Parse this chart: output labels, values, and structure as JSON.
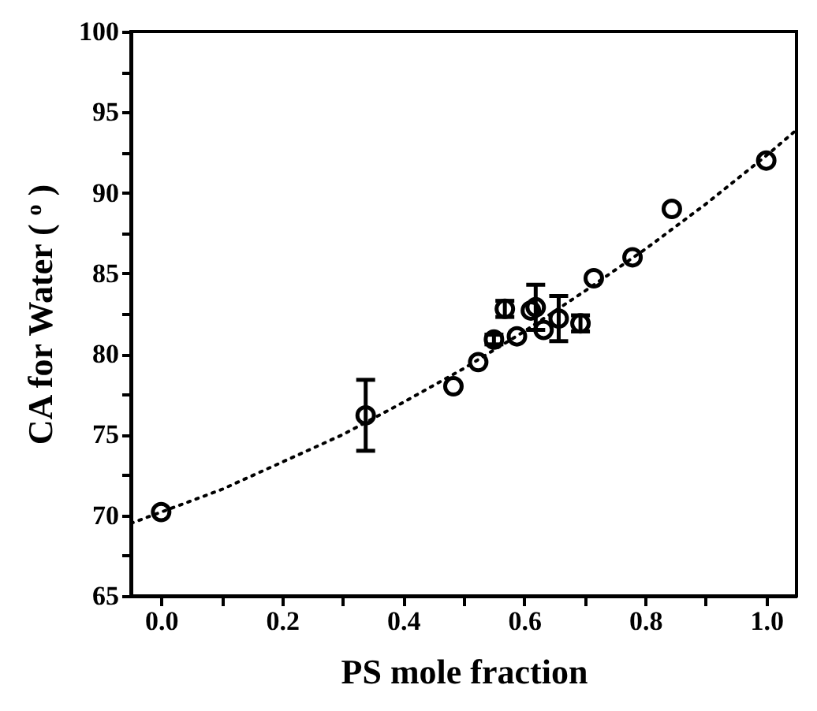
{
  "chart_data": {
    "type": "scatter",
    "xlabel": "PS mole fraction",
    "ylabel": "CA for Water ( $^{o}$ )",
    "xlim": [
      -0.05,
      1.05
    ],
    "ylim": [
      65,
      100
    ],
    "xticks": [
      {
        "value": 0,
        "label": "0.0"
      },
      {
        "value": 0.1,
        "label": null
      },
      {
        "value": 0.2,
        "label": "0.2"
      },
      {
        "value": 0.3,
        "label": null
      },
      {
        "value": 0.4,
        "label": "0.4"
      },
      {
        "value": 0.5,
        "label": null
      },
      {
        "value": 0.6,
        "label": "0.6"
      },
      {
        "value": 0.7,
        "label": null
      },
      {
        "value": 0.8,
        "label": "0.8"
      },
      {
        "value": 0.9,
        "label": null
      },
      {
        "value": 1,
        "label": "1.0"
      }
    ],
    "yticks": [
      65,
      {
        "value": 67.5,
        "label": null
      },
      70,
      {
        "value": 72.5,
        "label": null
      },
      75,
      {
        "value": 77.5,
        "label": null
      },
      80,
      {
        "value": 82.5,
        "label": null
      },
      85,
      {
        "value": 87.5,
        "label": null
      },
      90,
      {
        "value": 92.5,
        "label": null
      },
      95,
      {
        "value": 97.5,
        "label": null
      },
      100
    ],
    "grid": false,
    "series": [
      {
        "type": "line",
        "color": "#000000",
        "line_style": "dotted",
        "marker": "none",
        "x": [
          -0.05,
          0,
          0.1,
          0.2,
          0.3,
          0.4,
          0.5,
          0.6,
          0.7,
          0.8,
          0.9,
          1.0,
          1.05
        ],
        "values": [
          69.5,
          70.2,
          71.6,
          73.3,
          75.0,
          77.0,
          79.1,
          81.4,
          83.9,
          86.5,
          89.3,
          92.3,
          93.9
        ]
      },
      {
        "type": "scatter",
        "color": "#000000",
        "marker": "circle",
        "x": [
          0,
          0.338,
          0.483,
          0.524,
          0.55,
          0.568,
          0.588,
          0.611,
          0.619,
          0.632,
          0.657,
          0.693,
          0.715,
          0.779,
          0.844,
          1.0
        ],
        "values": [
          70.2,
          76.2,
          78.0,
          79.5,
          80.9,
          82.8,
          81.1,
          82.7,
          82.9,
          81.5,
          82.2,
          81.9,
          84.7,
          86.0,
          89.0,
          92.0
        ],
        "errors": [
          null,
          2.2,
          null,
          null,
          0.3,
          0.5,
          null,
          null,
          1.4,
          null,
          1.4,
          0.5,
          null,
          null,
          null,
          null
        ]
      }
    ]
  }
}
